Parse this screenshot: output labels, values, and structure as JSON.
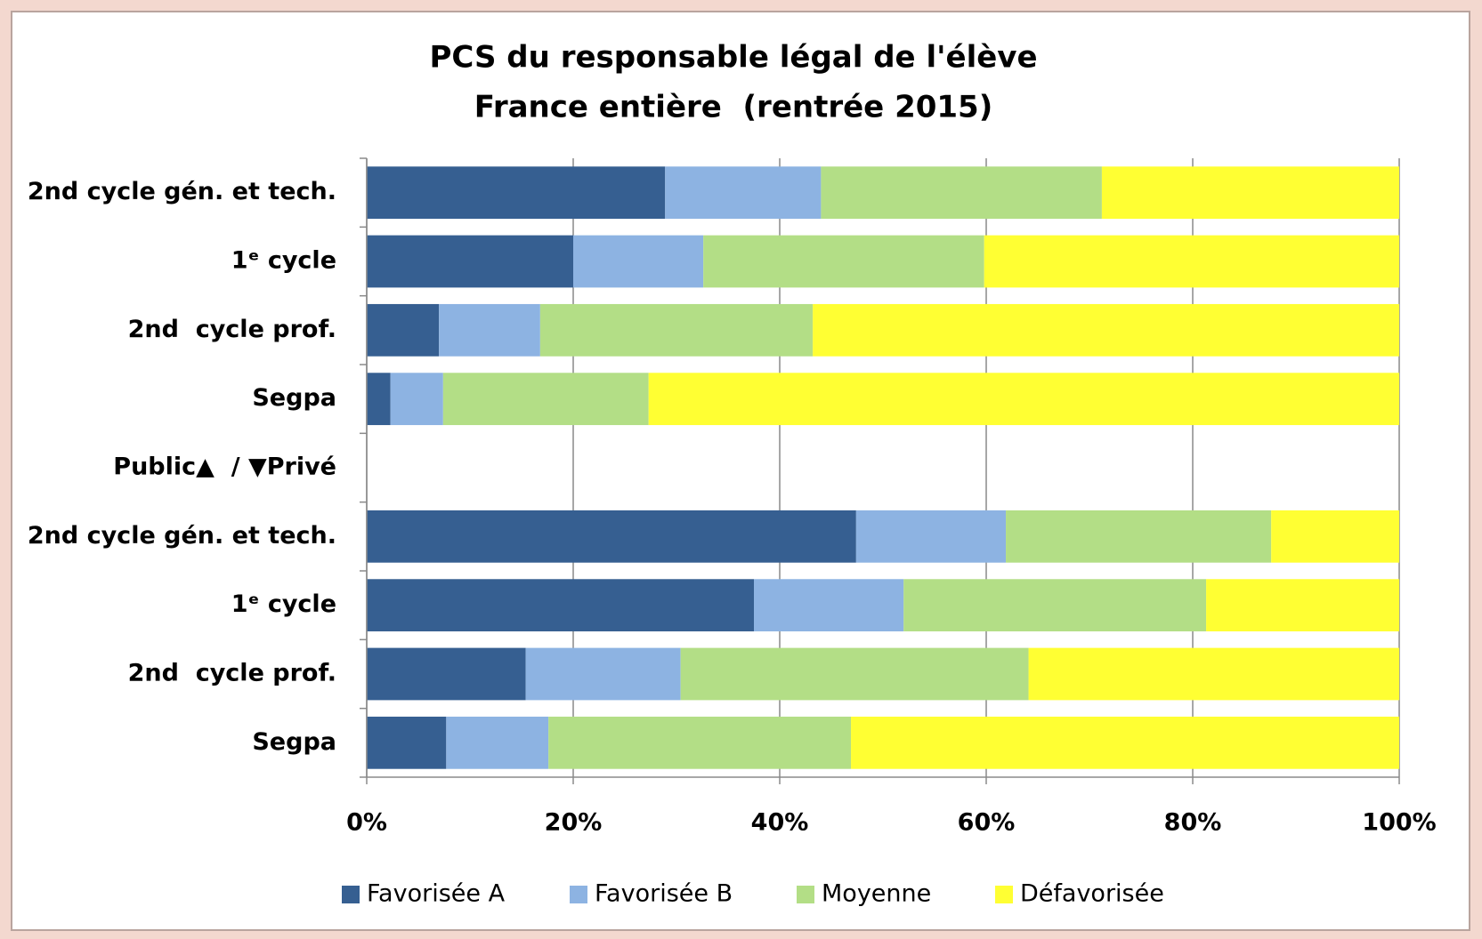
{
  "chart_data": {
    "type": "stacked_barh",
    "title": [
      "PCS du responsable légal de l'élève",
      "France entière  (rentrée 2015)"
    ],
    "categories": [
      "2nd cycle gén. et tech.",
      "1ᵉ cycle",
      "2nd  cycle prof.",
      "Segpa",
      "Public▲  / ▼Privé",
      "2nd cycle gén. et tech.",
      "1ᵉ cycle",
      "2nd  cycle prof.",
      "Segpa"
    ],
    "series": [
      {
        "name": "Favorisée A",
        "color": "#365f91",
        "values": [
          28.9,
          20.0,
          7.0,
          2.3,
          null,
          47.4,
          37.5,
          15.4,
          7.7
        ]
      },
      {
        "name": "Favorisée B",
        "color": "#8db3e2",
        "values": [
          15.1,
          12.6,
          9.8,
          5.1,
          null,
          14.5,
          14.5,
          15.0,
          9.9
        ]
      },
      {
        "name": "Moyenne",
        "color": "#b3de86",
        "values": [
          27.2,
          27.2,
          26.4,
          19.9,
          null,
          25.7,
          29.3,
          33.7,
          29.3
        ]
      },
      {
        "name": "Défavorisée",
        "color": "#ffff33",
        "values": [
          28.8,
          40.2,
          56.8,
          72.7,
          null,
          12.4,
          18.7,
          35.9,
          53.1
        ]
      }
    ],
    "xlim": [
      0,
      100
    ],
    "xticks": [
      {
        "value": 0,
        "label": "0%"
      },
      {
        "value": 20,
        "label": "20%"
      },
      {
        "value": 40,
        "label": "40%"
      },
      {
        "value": 60,
        "label": "60%"
      },
      {
        "value": 80,
        "label": "80%"
      },
      {
        "value": 100,
        "label": "100%"
      }
    ],
    "grid": true,
    "legend": "bottom"
  }
}
